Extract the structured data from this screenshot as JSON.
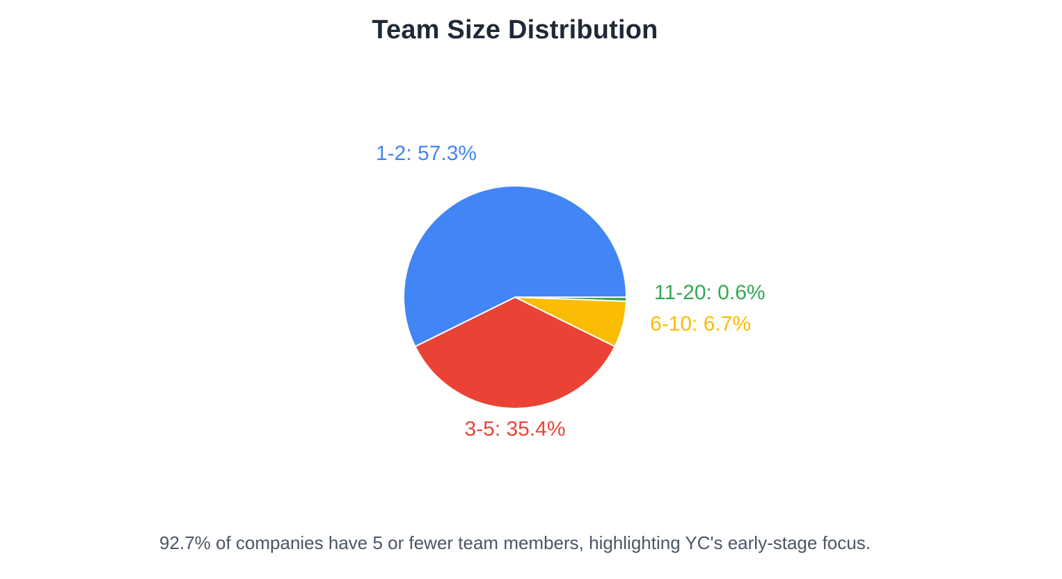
{
  "chart_data": {
    "type": "pie",
    "title": "Team Size Distribution",
    "slices": [
      {
        "label": "1-2",
        "value": 57.3,
        "display": "1-2: 57.3%",
        "color": "#4285f4"
      },
      {
        "label": "3-5",
        "value": 35.4,
        "display": "3-5: 35.4%",
        "color": "#ea4335"
      },
      {
        "label": "6-10",
        "value": 6.7,
        "display": "6-10: 6.7%",
        "color": "#fbbc04"
      },
      {
        "label": "11-20",
        "value": 0.6,
        "display": "11-20: 0.6%",
        "color": "#34a853"
      }
    ],
    "legend": "none",
    "labels": "outside"
  },
  "caption": "92.7% of companies have 5 or fewer team members, highlighting YC's early-stage focus."
}
